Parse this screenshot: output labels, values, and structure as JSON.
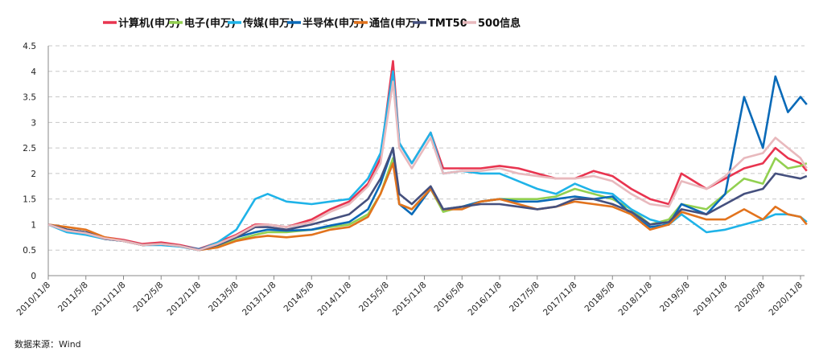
{
  "chart_data": {
    "type": "line",
    "title": "",
    "xlabel": "",
    "ylabel": "",
    "ylim": [
      0,
      4.5
    ],
    "yticks": [
      "0",
      "0.5",
      "1",
      "1.5",
      "2",
      "2.5",
      "3",
      "3.5",
      "4",
      "4.5"
    ],
    "xticks": [
      "2010/11/8",
      "2011/5/8",
      "2011/11/8",
      "2012/5/8",
      "2012/11/8",
      "2013/5/8",
      "2013/11/8",
      "2014/5/8",
      "2014/11/8",
      "2015/5/8",
      "2015/11/8",
      "2016/5/8",
      "2016/11/8",
      "2017/5/8",
      "2017/11/8",
      "2018/5/8",
      "2018/11/8",
      "2019/5/8",
      "2019/11/8",
      "2020/5/8",
      "2020/11/8"
    ],
    "grid": "horizontal-dashed",
    "legend_position": "top",
    "x": [
      "2010/11",
      "2011/2",
      "2011/5",
      "2011/8",
      "2011/11",
      "2012/2",
      "2012/5",
      "2012/8",
      "2012/11",
      "2013/2",
      "2013/5",
      "2013/8",
      "2013/10",
      "2014/1",
      "2014/5",
      "2014/8",
      "2014/11",
      "2015/2",
      "2015/4",
      "2015/6",
      "2015/7",
      "2015/9",
      "2015/12",
      "2016/2",
      "2016/5",
      "2016/8",
      "2016/11",
      "2017/2",
      "2017/5",
      "2017/8",
      "2017/11",
      "2018/2",
      "2018/5",
      "2018/8",
      "2018/11",
      "2019/2",
      "2019/4",
      "2019/8",
      "2019/11",
      "2020/2",
      "2020/5",
      "2020/7",
      "2020/9",
      "2020/11",
      "2020/12"
    ],
    "series": [
      {
        "name": "计算机(申万)",
        "color": "#e8344f",
        "values": [
          1.0,
          0.9,
          0.85,
          0.75,
          0.7,
          0.62,
          0.65,
          0.6,
          0.52,
          0.65,
          0.8,
          1.0,
          1.0,
          0.95,
          1.1,
          1.3,
          1.45,
          1.8,
          2.3,
          4.2,
          2.6,
          2.2,
          2.8,
          2.1,
          2.1,
          2.1,
          2.15,
          2.1,
          2.0,
          1.9,
          1.9,
          2.05,
          1.95,
          1.7,
          1.5,
          1.4,
          2.0,
          1.7,
          1.9,
          2.1,
          2.2,
          2.5,
          2.3,
          2.2,
          2.05
        ]
      },
      {
        "name": "电子(申万)",
        "color": "#92d050",
        "values": [
          1.0,
          0.9,
          0.85,
          0.72,
          0.68,
          0.6,
          0.62,
          0.58,
          0.5,
          0.58,
          0.7,
          0.8,
          0.85,
          0.85,
          0.9,
          0.95,
          1.0,
          1.2,
          1.6,
          2.3,
          1.4,
          1.3,
          1.7,
          1.25,
          1.35,
          1.45,
          1.5,
          1.5,
          1.5,
          1.55,
          1.7,
          1.6,
          1.5,
          1.3,
          1.0,
          1.1,
          1.4,
          1.3,
          1.6,
          1.9,
          1.8,
          2.3,
          2.1,
          2.15,
          2.2
        ]
      },
      {
        "name": "传媒(申万)",
        "color": "#1fb3e8",
        "values": [
          1.0,
          0.85,
          0.8,
          0.72,
          0.68,
          0.6,
          0.6,
          0.57,
          0.5,
          0.65,
          0.9,
          1.5,
          1.6,
          1.45,
          1.4,
          1.45,
          1.5,
          1.9,
          2.4,
          4.0,
          2.6,
          2.2,
          2.8,
          2.0,
          2.05,
          2.0,
          2.0,
          1.85,
          1.7,
          1.6,
          1.8,
          1.65,
          1.6,
          1.3,
          1.1,
          1.0,
          1.2,
          0.85,
          0.9,
          1.0,
          1.1,
          1.2,
          1.2,
          1.15,
          1.05
        ]
      },
      {
        "name": "半导体(申万)",
        "color": "#0a6ab8",
        "values": [
          1.0,
          0.9,
          0.85,
          0.72,
          0.68,
          0.6,
          0.62,
          0.58,
          0.52,
          0.6,
          0.75,
          0.85,
          0.9,
          0.88,
          0.9,
          0.98,
          1.05,
          1.3,
          1.8,
          2.5,
          1.4,
          1.2,
          1.7,
          1.3,
          1.35,
          1.45,
          1.5,
          1.45,
          1.45,
          1.5,
          1.55,
          1.5,
          1.55,
          1.2,
          0.95,
          1.0,
          1.4,
          1.2,
          1.6,
          3.5,
          2.5,
          3.9,
          3.2,
          3.5,
          3.35
        ]
      },
      {
        "name": "通信(申万)",
        "color": "#e2731d",
        "values": [
          1.0,
          0.95,
          0.9,
          0.75,
          0.68,
          0.6,
          0.62,
          0.58,
          0.5,
          0.55,
          0.68,
          0.75,
          0.78,
          0.75,
          0.8,
          0.9,
          0.95,
          1.15,
          1.6,
          2.2,
          1.4,
          1.3,
          1.7,
          1.3,
          1.3,
          1.45,
          1.5,
          1.4,
          1.3,
          1.35,
          1.45,
          1.4,
          1.35,
          1.2,
          0.9,
          1.0,
          1.25,
          1.1,
          1.1,
          1.3,
          1.1,
          1.35,
          1.2,
          1.15,
          1.0
        ]
      },
      {
        "name": "TMT50",
        "color": "#45507e",
        "values": [
          1.0,
          0.9,
          0.85,
          0.72,
          0.68,
          0.6,
          0.62,
          0.58,
          0.5,
          0.6,
          0.75,
          0.95,
          0.95,
          0.9,
          1.0,
          1.1,
          1.2,
          1.5,
          1.9,
          2.5,
          1.6,
          1.4,
          1.75,
          1.3,
          1.35,
          1.4,
          1.4,
          1.35,
          1.3,
          1.35,
          1.5,
          1.5,
          1.4,
          1.25,
          1.0,
          1.05,
          1.3,
          1.2,
          1.4,
          1.6,
          1.7,
          2.0,
          1.95,
          1.9,
          1.95
        ]
      },
      {
        "name": "500信息",
        "color": "#e8b9bd",
        "values": [
          1.0,
          0.88,
          0.83,
          0.73,
          0.68,
          0.6,
          0.62,
          0.58,
          0.5,
          0.62,
          0.78,
          0.98,
          1.0,
          0.95,
          1.05,
          1.25,
          1.4,
          1.75,
          2.2,
          3.8,
          2.5,
          2.1,
          2.7,
          2.0,
          2.05,
          2.05,
          2.1,
          2.0,
          1.95,
          1.9,
          1.9,
          1.95,
          1.85,
          1.6,
          1.4,
          1.35,
          1.85,
          1.7,
          1.95,
          2.3,
          2.4,
          2.7,
          2.5,
          2.3,
          2.1
        ]
      }
    ]
  },
  "source": "数据来源：Wind"
}
